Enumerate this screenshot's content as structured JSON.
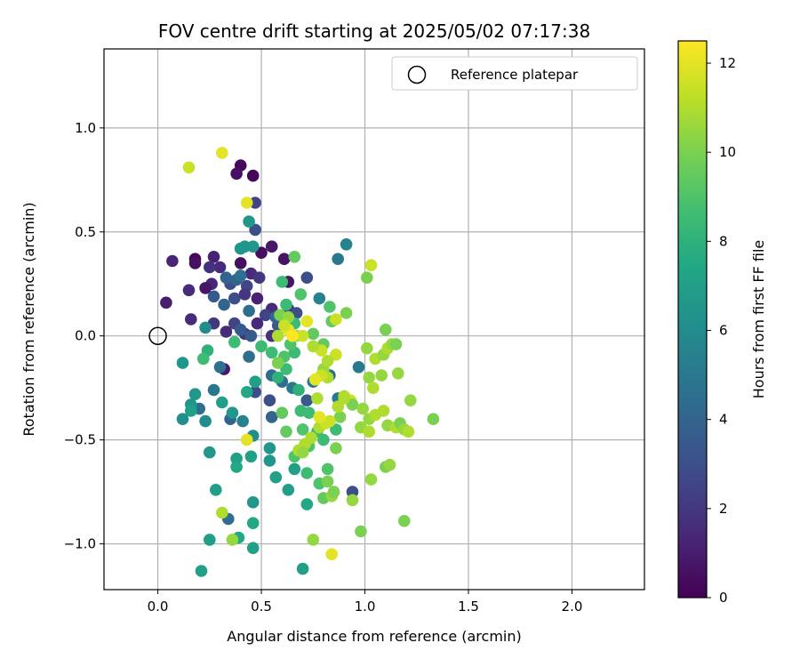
{
  "chart_data": {
    "type": "scatter",
    "title": "FOV centre drift starting at 2025/05/02 07:17:38",
    "xlabel": "Angular distance from reference (arcmin)",
    "ylabel": "Rotation from reference (arcmin)",
    "xlim": [
      -0.26,
      2.35
    ],
    "ylim": [
      -1.22,
      1.38
    ],
    "xticks": [
      0.0,
      0.5,
      1.0,
      1.5,
      2.0
    ],
    "xtick_labels": [
      "0.0",
      "0.5",
      "1.0",
      "1.5",
      "2.0"
    ],
    "yticks": [
      -1.0,
      -0.5,
      0.0,
      0.5,
      1.0
    ],
    "ytick_labels": [
      "−1.0",
      "−0.5",
      "0.0",
      "0.5",
      "1.0"
    ],
    "grid": true,
    "legend": {
      "placement": "top-right",
      "entries": [
        "Reference platepar"
      ]
    },
    "reference_point": {
      "x": 0.0,
      "y": 0.0,
      "label": "Reference platepar"
    },
    "colorbar": {
      "label": "Hours from first FF file",
      "colormap": "viridis",
      "range": [
        0,
        12.5
      ],
      "ticks": [
        0,
        2,
        4,
        6,
        8,
        10,
        12
      ],
      "tick_labels": [
        "0",
        "2",
        "4",
        "6",
        "8",
        "10",
        "12"
      ]
    },
    "series": [
      {
        "points": [
          [
            0.4,
            0.82,
            0.3
          ],
          [
            0.46,
            0.77,
            0.2
          ],
          [
            0.38,
            0.78,
            0.5
          ],
          [
            0.47,
            0.64,
            2.5
          ],
          [
            0.47,
            0.51,
            3.0
          ],
          [
            0.55,
            0.43,
            0.8
          ],
          [
            0.5,
            0.4,
            0.4
          ],
          [
            0.61,
            0.37,
            0.6
          ],
          [
            0.18,
            0.37,
            0.2
          ],
          [
            0.18,
            0.35,
            0.5
          ],
          [
            0.27,
            0.38,
            1.2
          ],
          [
            0.07,
            0.36,
            1.3
          ],
          [
            0.3,
            0.33,
            1.5
          ],
          [
            0.25,
            0.33,
            1.8
          ],
          [
            0.4,
            0.35,
            0.5
          ],
          [
            0.45,
            0.3,
            1.5
          ],
          [
            0.49,
            0.28,
            2.0
          ],
          [
            0.26,
            0.25,
            1.3
          ],
          [
            0.23,
            0.23,
            0.7
          ],
          [
            0.35,
            0.25,
            3.0
          ],
          [
            0.38,
            0.27,
            4.0
          ],
          [
            0.43,
            0.24,
            2.5
          ],
          [
            0.63,
            0.26,
            0.7
          ],
          [
            0.72,
            0.28,
            3.0
          ],
          [
            0.15,
            0.22,
            1.5
          ],
          [
            0.04,
            0.16,
            1.0
          ],
          [
            0.27,
            0.19,
            3.5
          ],
          [
            0.37,
            0.18,
            3.0
          ],
          [
            0.42,
            0.2,
            2.0
          ],
          [
            0.48,
            0.18,
            1.2
          ],
          [
            0.55,
            0.13,
            1.5
          ],
          [
            0.63,
            0.13,
            2.0
          ],
          [
            0.67,
            0.11,
            3.0
          ],
          [
            0.52,
            0.1,
            2.5
          ],
          [
            0.16,
            0.08,
            1.6
          ],
          [
            0.27,
            0.06,
            2.0
          ],
          [
            0.37,
            0.06,
            2.5
          ],
          [
            0.48,
            0.06,
            1.5
          ],
          [
            0.58,
            0.05,
            3.5
          ],
          [
            0.33,
            0.02,
            1.5
          ],
          [
            0.42,
            0.01,
            2.0
          ],
          [
            0.45,
            0.0,
            3.5
          ],
          [
            0.55,
            0.0,
            1.8
          ],
          [
            0.32,
            -0.16,
            0.8
          ],
          [
            0.54,
            -0.31,
            3.0
          ],
          [
            0.72,
            -0.31,
            3.5
          ],
          [
            0.94,
            -0.75,
            3.0
          ],
          [
            0.35,
            -0.4,
            4.0
          ],
          [
            0.2,
            -0.35,
            4.5
          ],
          [
            0.34,
            -0.88,
            4.5
          ],
          [
            0.55,
            -0.39,
            4.0
          ],
          [
            0.47,
            -0.27,
            3.0
          ],
          [
            0.4,
            0.42,
            4.5
          ],
          [
            0.4,
            0.29,
            4.5
          ],
          [
            0.33,
            0.28,
            4.0
          ],
          [
            0.32,
            0.15,
            4.0
          ],
          [
            0.44,
            0.12,
            4.5
          ],
          [
            0.57,
            0.09,
            4.0
          ],
          [
            0.4,
            0.03,
            3.5
          ],
          [
            0.3,
            -0.15,
            4.5
          ],
          [
            0.44,
            -0.1,
            4.5
          ],
          [
            0.55,
            -0.19,
            4.5
          ],
          [
            0.6,
            -0.22,
            4.5
          ],
          [
            0.65,
            -0.25,
            5.0
          ],
          [
            0.75,
            -0.22,
            5.0
          ],
          [
            0.83,
            -0.19,
            4.5
          ],
          [
            0.87,
            -0.3,
            5.0
          ],
          [
            0.97,
            -0.15,
            5.0
          ],
          [
            0.87,
            0.37,
            5.0
          ],
          [
            0.91,
            0.44,
            5.5
          ],
          [
            0.78,
            0.18,
            5.5
          ],
          [
            0.27,
            -0.26,
            5.0
          ],
          [
            0.23,
            -0.41,
            6.0
          ],
          [
            0.25,
            -0.56,
            6.5
          ],
          [
            0.23,
            0.04,
            6.0
          ],
          [
            0.42,
            0.43,
            6.5
          ],
          [
            0.46,
            0.43,
            6.5
          ],
          [
            0.44,
            0.55,
            6.5
          ],
          [
            0.4,
            0.42,
            6.5
          ],
          [
            0.41,
            -0.41,
            5.5
          ],
          [
            0.46,
            -0.48,
            6.0
          ],
          [
            0.12,
            -0.13,
            6.5
          ],
          [
            0.12,
            -0.4,
            6.0
          ],
          [
            0.16,
            -0.33,
            6.5
          ],
          [
            0.16,
            -0.36,
            7.0
          ],
          [
            0.18,
            -0.28,
            6.5
          ],
          [
            0.31,
            -0.32,
            7.0
          ],
          [
            0.36,
            -0.37,
            6.5
          ],
          [
            0.43,
            -0.27,
            7.5
          ],
          [
            0.47,
            -0.22,
            7.0
          ],
          [
            0.38,
            -0.59,
            7.0
          ],
          [
            0.38,
            -0.63,
            7.5
          ],
          [
            0.45,
            -0.58,
            7.0
          ],
          [
            0.46,
            -0.8,
            6.5
          ],
          [
            0.54,
            -0.54,
            6.5
          ],
          [
            0.54,
            -0.6,
            6.5
          ],
          [
            0.57,
            -0.68,
            7.0
          ],
          [
            0.63,
            -0.74,
            7.0
          ],
          [
            0.66,
            -0.64,
            7.0
          ],
          [
            0.72,
            -0.81,
            7.5
          ],
          [
            0.7,
            -1.12,
            7.0
          ],
          [
            0.46,
            -1.02,
            7.0
          ],
          [
            0.39,
            -0.97,
            7.5
          ],
          [
            0.25,
            -0.98,
            7.0
          ],
          [
            0.21,
            -1.13,
            7.0
          ],
          [
            0.28,
            -0.74,
            7.0
          ],
          [
            0.46,
            -0.9,
            7.5
          ],
          [
            0.24,
            -0.07,
            8.0
          ],
          [
            0.22,
            -0.11,
            8.5
          ],
          [
            0.37,
            -0.03,
            8.5
          ],
          [
            0.5,
            -0.05,
            8.5
          ],
          [
            0.55,
            -0.08,
            8.5
          ],
          [
            0.58,
            -0.2,
            8.0
          ],
          [
            0.62,
            -0.16,
            8.5
          ],
          [
            0.66,
            -0.08,
            8.5
          ],
          [
            0.68,
            -0.26,
            8.0
          ],
          [
            0.69,
            -0.36,
            8.5
          ],
          [
            0.73,
            -0.37,
            8.5
          ],
          [
            0.77,
            -0.46,
            8.5
          ],
          [
            0.8,
            -0.5,
            8.5
          ],
          [
            0.73,
            -0.53,
            9.0
          ],
          [
            0.72,
            -0.66,
            8.5
          ],
          [
            0.78,
            -0.71,
            9.0
          ],
          [
            0.8,
            -0.78,
            9.5
          ],
          [
            0.82,
            -0.64,
            9.0
          ],
          [
            0.86,
            -0.45,
            8.5
          ],
          [
            0.7,
            -0.45,
            9.0
          ],
          [
            0.66,
            -0.58,
            9.0
          ],
          [
            0.62,
            -0.46,
            9.5
          ],
          [
            0.6,
            -0.37,
            9.5
          ],
          [
            0.61,
            -0.1,
            9.0
          ],
          [
            0.64,
            -0.04,
            9.0
          ],
          [
            0.66,
            0.06,
            8.5
          ],
          [
            0.6,
            0.26,
            8.5
          ],
          [
            0.62,
            0.15,
            8.5
          ],
          [
            0.66,
            0.38,
            9.5
          ],
          [
            0.69,
            0.2,
            9.0
          ],
          [
            0.75,
            0.01,
            9.5
          ],
          [
            0.8,
            -0.04,
            9.5
          ],
          [
            0.84,
            0.07,
            9.5
          ],
          [
            0.83,
            0.14,
            9.0
          ],
          [
            0.91,
            0.11,
            10.0
          ],
          [
            1.01,
            0.28,
            10.0
          ],
          [
            1.03,
            0.34,
            11.5
          ],
          [
            0.8,
            -0.16,
            10.5
          ],
          [
            0.86,
            -0.09,
            11.5
          ],
          [
            0.88,
            -0.39,
            10.0
          ],
          [
            0.9,
            -0.29,
            11.0
          ],
          [
            0.93,
            -0.31,
            11.5
          ],
          [
            0.94,
            -0.33,
            10.0
          ],
          [
            0.99,
            -0.35,
            10.5
          ],
          [
            1.02,
            -0.4,
            10.5
          ],
          [
            0.98,
            -0.44,
            10.5
          ],
          [
            1.02,
            -0.46,
            11.0
          ],
          [
            1.05,
            -0.38,
            11.0
          ],
          [
            1.09,
            -0.36,
            11.0
          ],
          [
            1.11,
            -0.43,
            10.5
          ],
          [
            1.15,
            -0.44,
            11.0
          ],
          [
            1.17,
            -0.42,
            10.0
          ],
          [
            1.19,
            -0.45,
            10.5
          ],
          [
            1.21,
            -0.46,
            11.0
          ],
          [
            1.22,
            -0.31,
            10.5
          ],
          [
            1.33,
            -0.4,
            10.0
          ],
          [
            1.01,
            -0.06,
            10.5
          ],
          [
            1.05,
            -0.11,
            11.0
          ],
          [
            1.09,
            -0.09,
            10.5
          ],
          [
            1.11,
            -0.06,
            11.0
          ],
          [
            1.13,
            -0.04,
            10.5
          ],
          [
            1.15,
            -0.04,
            10.0
          ],
          [
            1.16,
            -0.18,
            10.5
          ],
          [
            1.1,
            0.03,
            10.0
          ],
          [
            1.02,
            -0.2,
            10.5
          ],
          [
            1.04,
            -0.25,
            11.0
          ],
          [
            1.08,
            -0.19,
            10.5
          ],
          [
            1.1,
            -0.63,
            10.0
          ],
          [
            1.12,
            -0.62,
            10.5
          ],
          [
            1.03,
            -0.69,
            10.5
          ],
          [
            0.98,
            -0.94,
            10.0
          ],
          [
            0.94,
            -0.79,
            10.5
          ],
          [
            0.82,
            -0.7,
            10.0
          ],
          [
            0.84,
            -0.77,
            10.5
          ],
          [
            0.85,
            -0.75,
            10.0
          ],
          [
            0.75,
            -0.98,
            10.5
          ],
          [
            0.84,
            -1.05,
            12.0
          ],
          [
            1.19,
            -0.89,
            10.0
          ],
          [
            0.87,
            -0.34,
            11.0
          ],
          [
            0.83,
            -0.41,
            11.5
          ],
          [
            0.78,
            -0.44,
            11.0
          ],
          [
            0.74,
            -0.49,
            11.0
          ],
          [
            0.71,
            -0.52,
            11.0
          ],
          [
            0.68,
            -0.55,
            11.0
          ],
          [
            0.7,
            -0.56,
            10.5
          ],
          [
            0.86,
            -0.54,
            10.0
          ],
          [
            0.81,
            -0.42,
            11.5
          ],
          [
            0.77,
            -0.3,
            11.0
          ],
          [
            0.82,
            -0.2,
            11.0
          ],
          [
            0.82,
            -0.12,
            11.0
          ],
          [
            0.79,
            -0.19,
            11.5
          ],
          [
            0.79,
            -0.07,
            11.5
          ],
          [
            0.75,
            -0.05,
            11.0
          ],
          [
            0.78,
            -0.39,
            12.0
          ],
          [
            0.76,
            -0.21,
            12.0
          ],
          [
            0.63,
            0.03,
            12.0
          ],
          [
            0.58,
            -0.13,
            10.0
          ],
          [
            0.58,
            0.0,
            11.0
          ],
          [
            0.59,
            0.1,
            10.0
          ],
          [
            0.63,
            0.09,
            10.5
          ],
          [
            0.67,
            0.0,
            11.0
          ],
          [
            0.7,
            0.0,
            11.5
          ],
          [
            0.72,
            0.07,
            12.0
          ],
          [
            0.65,
            0.0,
            12.5
          ],
          [
            0.61,
            0.05,
            11.5
          ],
          [
            0.86,
            0.08,
            11.5
          ],
          [
            0.9,
            -0.3,
            11.0
          ],
          [
            0.43,
            0.64,
            12.0
          ],
          [
            0.31,
            0.88,
            12.0
          ],
          [
            0.15,
            0.81,
            11.5
          ],
          [
            0.43,
            -0.5,
            12.0
          ],
          [
            0.31,
            -0.85,
            11.0
          ],
          [
            0.36,
            -0.98,
            10.5
          ]
        ]
      }
    ]
  }
}
